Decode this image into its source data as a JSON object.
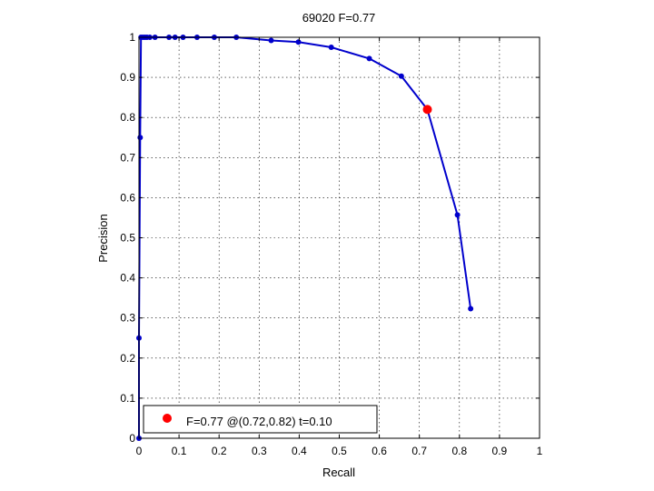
{
  "chart_data": {
    "type": "line",
    "title": "69020 F=0.77",
    "xlabel": "Recall",
    "ylabel": "Precision",
    "xlim": [
      0,
      1
    ],
    "ylim": [
      0,
      1
    ],
    "grid": true,
    "x_ticks": [
      "0",
      "0.1",
      "0.2",
      "0.3",
      "0.4",
      "0.5",
      "0.6",
      "0.7",
      "0.8",
      "0.9",
      "1"
    ],
    "y_ticks": [
      "0",
      "0.1",
      "0.2",
      "0.3",
      "0.4",
      "0.5",
      "0.6",
      "0.7",
      "0.8",
      "0.9",
      "1"
    ],
    "series": [
      {
        "color": "#0000cc",
        "points": [
          [
            0,
            0
          ],
          [
            0,
            0.25
          ],
          [
            0.003,
            0.75
          ],
          [
            0.005,
            1.0
          ],
          [
            0.01,
            1.0
          ],
          [
            0.015,
            1.0
          ],
          [
            0.02,
            1.0
          ],
          [
            0.027,
            1.0
          ],
          [
            0.04,
            1.0
          ],
          [
            0.075,
            1.0
          ],
          [
            0.09,
            1.0
          ],
          [
            0.11,
            1.0
          ],
          [
            0.145,
            1.0
          ],
          [
            0.188,
            1.0
          ],
          [
            0.243,
            1.0
          ],
          [
            0.33,
            0.992
          ],
          [
            0.398,
            0.988
          ],
          [
            0.48,
            0.975
          ],
          [
            0.575,
            0.947
          ],
          [
            0.655,
            0.903
          ],
          [
            0.72,
            0.82
          ],
          [
            0.795,
            0.557
          ],
          [
            0.828,
            0.323
          ]
        ]
      }
    ],
    "highlight": {
      "x": 0.72,
      "y": 0.82,
      "color": "#ff0000"
    },
    "legend": {
      "placement": "bottom-left",
      "label": "F=0.77 @(0.72,0.82) t=0.10"
    }
  }
}
